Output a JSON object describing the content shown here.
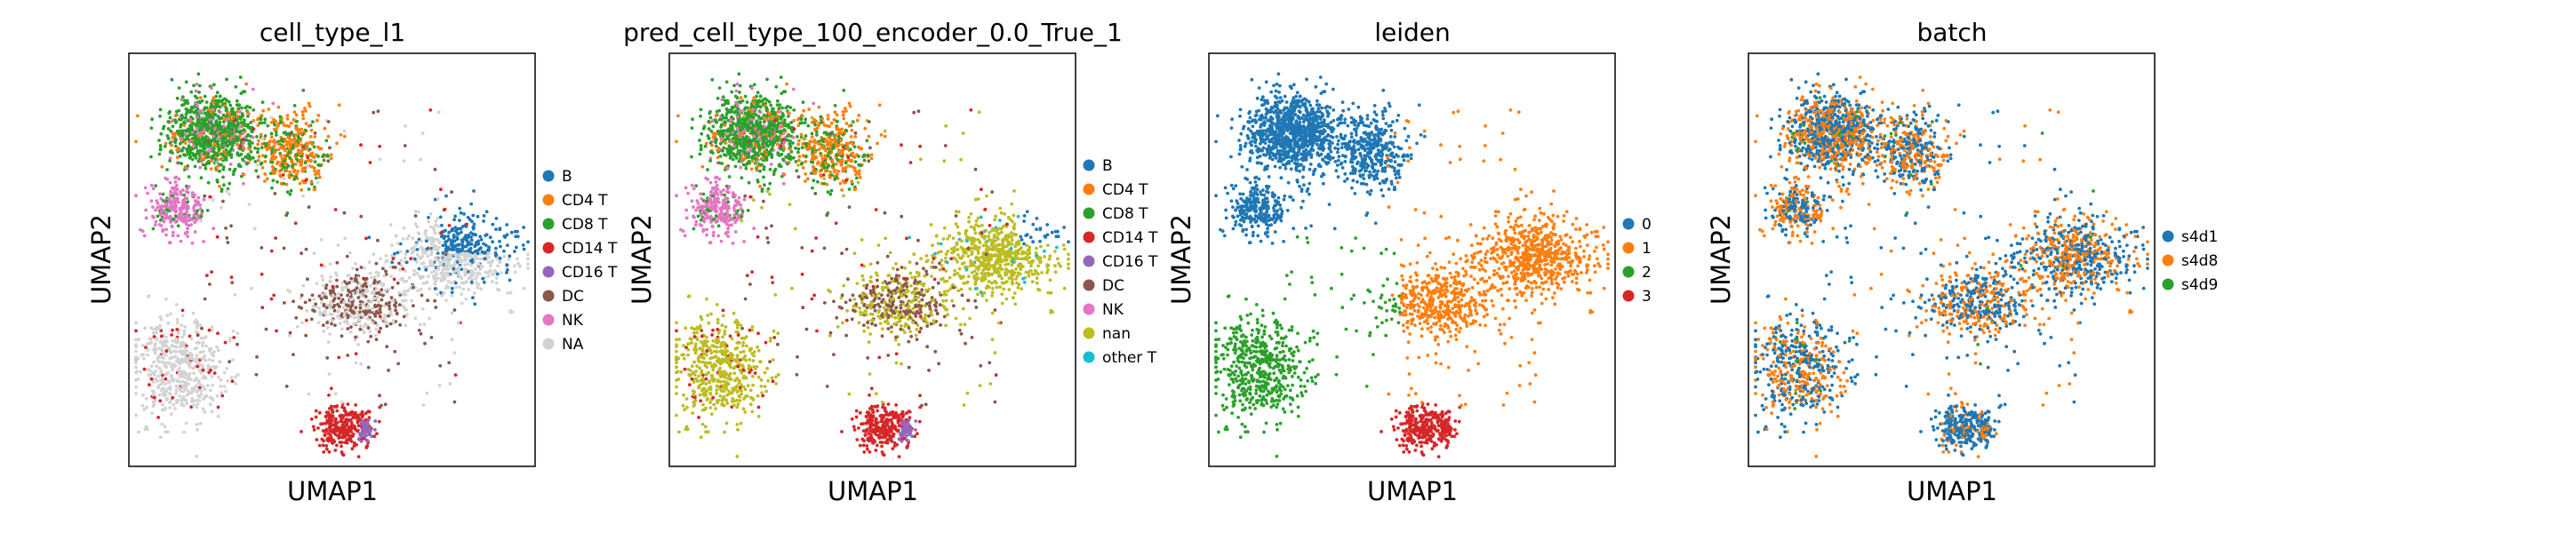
{
  "chart_data": [
    {
      "type": "scatter",
      "title": "cell_type_l1",
      "xlabel": "UMAP1",
      "ylabel": "UMAP2",
      "legend_position": "right",
      "grid": false,
      "ticks": false,
      "legend": [
        {
          "label": "B",
          "color": "#1f77b4"
        },
        {
          "label": "CD4 T",
          "color": "#ff7f0e"
        },
        {
          "label": "CD8 T",
          "color": "#2ca02c"
        },
        {
          "label": "CD14 T",
          "color": "#d62728"
        },
        {
          "label": "CD16 T",
          "color": "#9467bd"
        },
        {
          "label": "DC",
          "color": "#8c564b"
        },
        {
          "label": "NK",
          "color": "#e377c2"
        },
        {
          "label": "NA",
          "color": "#d3d3d3"
        }
      ]
    },
    {
      "type": "scatter",
      "title": "pred_cell_type_100_encoder_0.0_True_1",
      "xlabel": "UMAP1",
      "ylabel": "UMAP2",
      "legend_position": "right",
      "grid": false,
      "ticks": false,
      "legend": [
        {
          "label": "B",
          "color": "#1f77b4"
        },
        {
          "label": "CD4 T",
          "color": "#ff7f0e"
        },
        {
          "label": "CD8 T",
          "color": "#2ca02c"
        },
        {
          "label": "CD14 T",
          "color": "#d62728"
        },
        {
          "label": "CD16 T",
          "color": "#9467bd"
        },
        {
          "label": "DC",
          "color": "#8c564b"
        },
        {
          "label": "NK",
          "color": "#e377c2"
        },
        {
          "label": "nan",
          "color": "#bcbd22"
        },
        {
          "label": "other T",
          "color": "#17becf"
        }
      ]
    },
    {
      "type": "scatter",
      "title": "leiden",
      "xlabel": "UMAP1",
      "ylabel": "UMAP2",
      "legend_position": "right",
      "grid": false,
      "ticks": false,
      "legend": [
        {
          "label": "0",
          "color": "#1f77b4"
        },
        {
          "label": "1",
          "color": "#ff7f0e"
        },
        {
          "label": "2",
          "color": "#2ca02c"
        },
        {
          "label": "3",
          "color": "#d62728"
        }
      ]
    },
    {
      "type": "scatter",
      "title": "batch",
      "xlabel": "UMAP1",
      "ylabel": "UMAP2",
      "legend_position": "right",
      "grid": false,
      "ticks": false,
      "legend": [
        {
          "label": "s4d1",
          "color": "#1f77b4"
        },
        {
          "label": "s4d8",
          "color": "#ff7f0e"
        },
        {
          "label": "s4d9",
          "color": "#2ca02c"
        }
      ]
    }
  ]
}
